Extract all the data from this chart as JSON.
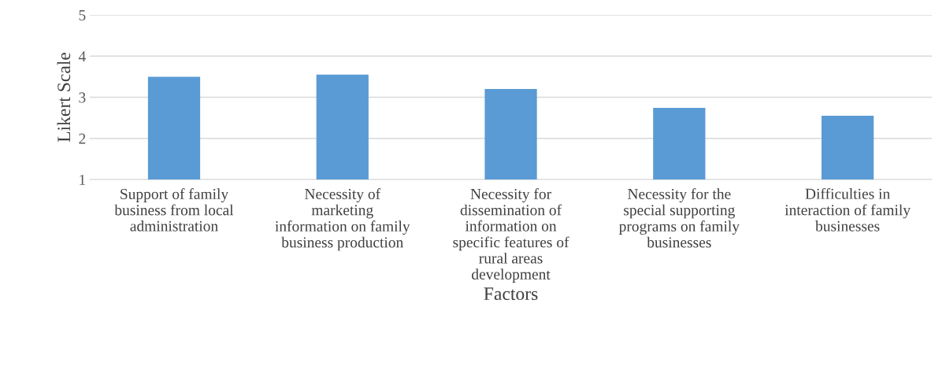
{
  "chart_data": {
    "type": "bar",
    "xlabel": "Factors",
    "ylabel": "Likert Scale",
    "categories": [
      "Support of family\nbusiness from local\nadministration",
      "Necessity of\nmarketing\ninformation on family\nbusiness production",
      "Necessity for\ndissemination of\ninformation on\nspecific features of\nrural areas\ndevelopment",
      "Necessity for the\nspecial supporting\nprograms on family\nbusinesses",
      "Difficulties in\ninteraction of family\nbusinesses"
    ],
    "values": [
      3.5,
      3.55,
      3.2,
      2.74,
      2.55
    ],
    "color": "#5b9bd5",
    "ylim": [
      1,
      5
    ],
    "yticks": [
      1,
      2,
      3,
      4,
      5
    ],
    "grid": "y",
    "legend": false
  }
}
